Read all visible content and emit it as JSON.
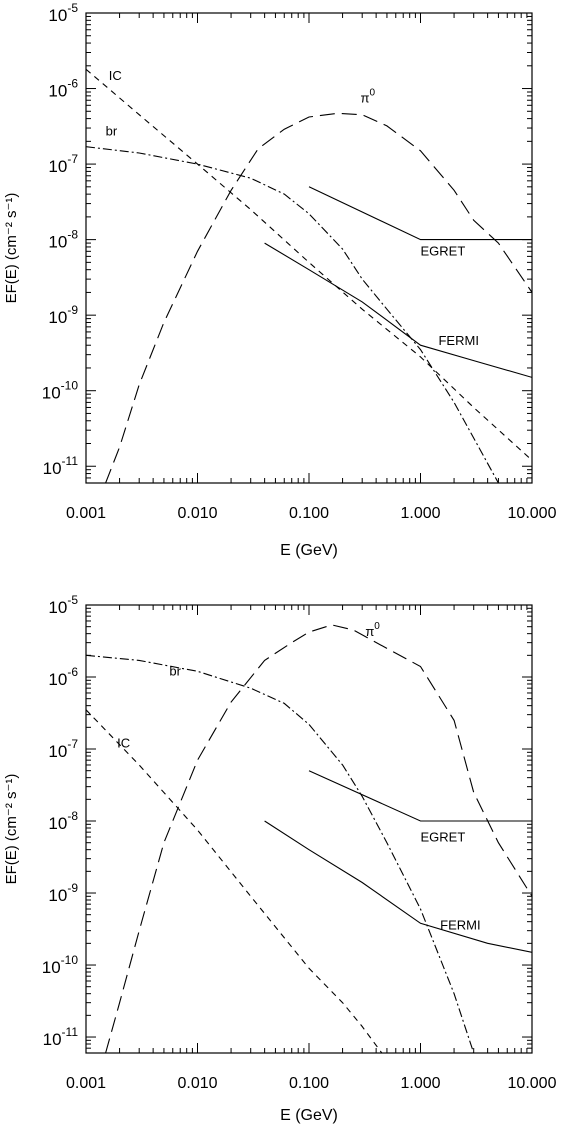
{
  "chart_data": [
    {
      "type": "line",
      "xlabel": "E (GeV)",
      "ylabel": "EF(E)  (cm⁻² s⁻¹)",
      "xscale": "log",
      "yscale": "log",
      "xlim": [
        0.001,
        10
      ],
      "ylim": [
        6e-12,
        1e-05
      ],
      "xticks": [
        "0.001",
        "0.010",
        "0.100",
        "1.000",
        "10.000"
      ],
      "yticks": [
        {
          "base": "10",
          "exp": "-5"
        },
        {
          "base": "10",
          "exp": "-6"
        },
        {
          "base": "10",
          "exp": "-7"
        },
        {
          "base": "10",
          "exp": "-8"
        },
        {
          "base": "10",
          "exp": "-9"
        },
        {
          "base": "10",
          "exp": "-10"
        },
        {
          "base": "10",
          "exp": "-11"
        }
      ],
      "series": [
        {
          "name": "IC",
          "style": "short-dash",
          "x": [
            0.001,
            0.003,
            0.01,
            0.03,
            0.1,
            0.3,
            1,
            3,
            10
          ],
          "y": [
            1.8e-06,
            4.5e-07,
            1e-07,
            2.5e-08,
            5e-09,
            1.2e-09,
            2.8e-10,
            6e-11,
            1.2e-11
          ]
        },
        {
          "name": "br",
          "style": "dash-dot",
          "x": [
            0.001,
            0.003,
            0.01,
            0.03,
            0.06,
            0.1,
            0.2,
            0.3,
            0.5,
            1,
            2,
            5
          ],
          "y": [
            1.7e-07,
            1.4e-07,
            1e-07,
            6.5e-08,
            4e-08,
            2.2e-08,
            7.5e-09,
            3e-09,
            1.2e-09,
            3.5e-10,
            7e-11,
            6e-12
          ]
        },
        {
          "name": "π⁰",
          "style": "long-dash",
          "x": [
            0.0015,
            0.002,
            0.003,
            0.005,
            0.01,
            0.02,
            0.035,
            0.06,
            0.1,
            0.18,
            0.3,
            0.5,
            1,
            2,
            3,
            5,
            10
          ],
          "y": [
            6e-12,
            1.8e-11,
            1.2e-10,
            8e-10,
            7e-09,
            4.5e-08,
            1.6e-07,
            2.9e-07,
            4.2e-07,
            4.7e-07,
            4.5e-07,
            3.2e-07,
            1.5e-07,
            4.5e-08,
            1.8e-08,
            9e-09,
            2e-09
          ]
        },
        {
          "name": "EGRET",
          "style": "solid",
          "x": [
            0.1,
            1,
            10
          ],
          "y": [
            5e-08,
            1e-08,
            1e-08
          ]
        },
        {
          "name": "FERMI",
          "style": "solid",
          "x": [
            0.04,
            0.1,
            0.3,
            1,
            3,
            10
          ],
          "y": [
            9e-09,
            4e-09,
            1.5e-09,
            4e-10,
            2.5e-10,
            1.5e-10
          ]
        }
      ],
      "labels": [
        {
          "text": "IC",
          "x": 0.0016,
          "y": 1.3e-06
        },
        {
          "text": "br",
          "x": 0.0015,
          "y": 2.4e-07
        },
        {
          "text": "π",
          "sup": "0",
          "x": 0.29,
          "y": 6.5e-07
        },
        {
          "text": "EGRET",
          "x": 1.0,
          "y": 6.2e-09
        },
        {
          "text": "FERMI",
          "x": 1.45,
          "y": 4e-10
        }
      ]
    },
    {
      "type": "line",
      "xlabel": "E (GeV)",
      "ylabel": "EF(E)  (cm⁻² s⁻¹)",
      "xscale": "log",
      "yscale": "log",
      "xlim": [
        0.001,
        10
      ],
      "ylim": [
        6e-12,
        1e-05
      ],
      "xticks": [
        "0.001",
        "0.010",
        "0.100",
        "1.000",
        "10.000"
      ],
      "yticks": [
        {
          "base": "10",
          "exp": "-5"
        },
        {
          "base": "10",
          "exp": "-6"
        },
        {
          "base": "10",
          "exp": "-7"
        },
        {
          "base": "10",
          "exp": "-8"
        },
        {
          "base": "10",
          "exp": "-9"
        },
        {
          "base": "10",
          "exp": "-10"
        },
        {
          "base": "10",
          "exp": "-11"
        }
      ],
      "series": [
        {
          "name": "IC",
          "style": "short-dash",
          "x": [
            0.001,
            0.003,
            0.01,
            0.03,
            0.1,
            0.2,
            0.3,
            0.45
          ],
          "y": [
            3.5e-07,
            6e-08,
            7.5e-09,
            9e-10,
            9e-11,
            3e-11,
            1.4e-11,
            6e-12
          ]
        },
        {
          "name": "br",
          "style": "dash-dot",
          "x": [
            0.001,
            0.003,
            0.01,
            0.03,
            0.06,
            0.1,
            0.2,
            0.3,
            0.5,
            1,
            2,
            3
          ],
          "y": [
            2e-06,
            1.7e-06,
            1.2e-06,
            7e-07,
            4.3e-07,
            2.2e-07,
            6e-08,
            2.2e-08,
            5e-09,
            6e-10,
            4e-11,
            6e-12
          ]
        },
        {
          "name": "π⁰",
          "style": "long-dash",
          "x": [
            0.0015,
            0.002,
            0.003,
            0.005,
            0.01,
            0.02,
            0.04,
            0.07,
            0.1,
            0.16,
            0.25,
            0.5,
            1,
            2,
            3,
            5,
            10
          ],
          "y": [
            6e-12,
            3e-11,
            3e-10,
            5e-09,
            7e-08,
            4.5e-07,
            1.7e-06,
            3e-06,
            4.2e-06,
            5.3e-06,
            4.5e-06,
            2.5e-06,
            1.4e-06,
            2.5e-07,
            2.5e-08,
            5e-09,
            9e-10
          ]
        },
        {
          "name": "EGRET",
          "style": "solid",
          "x": [
            0.1,
            1,
            10
          ],
          "y": [
            5e-08,
            1e-08,
            1e-08
          ]
        },
        {
          "name": "FERMI",
          "style": "solid",
          "x": [
            0.04,
            0.1,
            0.3,
            1,
            4,
            10
          ],
          "y": [
            1e-08,
            4e-09,
            1.4e-09,
            3.8e-10,
            2e-10,
            1.5e-10
          ]
        }
      ],
      "labels": [
        {
          "text": "IC",
          "x": 0.0019,
          "y": 1.05e-07
        },
        {
          "text": "br",
          "x": 0.0056,
          "y": 1.05e-06
        },
        {
          "text": "π",
          "sup": "0",
          "x": 0.32,
          "y": 3.7e-06
        },
        {
          "text": "EGRET",
          "x": 1.0,
          "y": 5.2e-09
        },
        {
          "text": "FERMI",
          "x": 1.5,
          "y": 3.1e-10
        }
      ]
    }
  ]
}
